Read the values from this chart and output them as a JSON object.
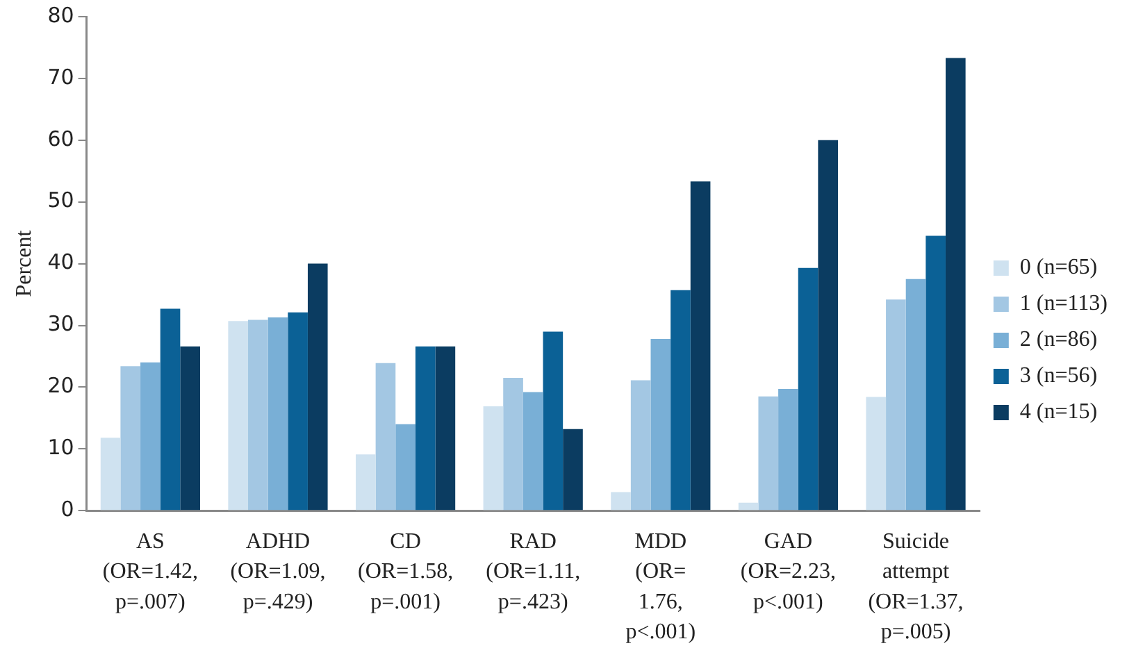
{
  "chart_data": {
    "type": "bar",
    "ylabel": "Percent",
    "categories": [
      "AS\n(OR=1.42,\np=.007)",
      "ADHD\n(OR=1.09,\np=.429)",
      "CD\n(OR=1.58,\np=.001)",
      "RAD\n(OR=1.11,\np=.423)",
      "MDD\n(OR=\n1.76,\np<.001)",
      "GAD\n(OR=2.23,\np<.001)",
      "Suicide\nattempt\n(OR=1.37,\np=.005)"
    ],
    "series": [
      {
        "name": "0 (n=65)",
        "color": "#cfe2f0",
        "values": [
          11.8,
          30.7,
          9.1,
          16.9,
          3.0,
          1.3,
          18.4
        ]
      },
      {
        "name": "1 (n=113)",
        "color": "#a3c7e3",
        "values": [
          23.4,
          30.9,
          23.9,
          21.5,
          21.1,
          18.5,
          34.2
        ]
      },
      {
        "name": "2 (n=86)",
        "color": "#79afd6",
        "values": [
          24.0,
          31.3,
          14.0,
          19.2,
          27.8,
          19.7,
          37.5
        ]
      },
      {
        "name": "3 (n=56)",
        "color": "#0b6196",
        "values": [
          32.7,
          32.1,
          26.6,
          29.0,
          35.7,
          39.3,
          44.5
        ]
      },
      {
        "name": "4 (n=15)",
        "color": "#0b3c61",
        "values": [
          26.6,
          40.0,
          26.6,
          13.2,
          53.3,
          60.0,
          73.3
        ]
      }
    ],
    "ylim": [
      0,
      80
    ],
    "yticks": [
      0,
      10,
      20,
      30,
      40,
      50,
      60,
      70,
      80
    ],
    "grid": false,
    "legend": "right"
  }
}
